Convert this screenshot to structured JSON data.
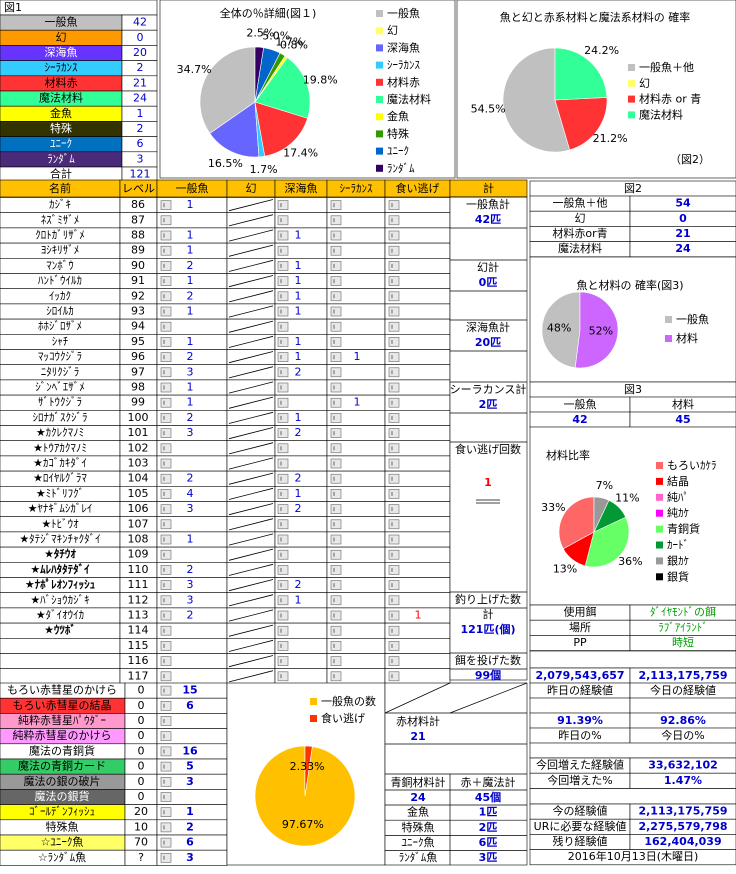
{
  "fig1_table": {
    "title": "図1",
    "rows": [
      {
        "name": "一般魚",
        "count": 42,
        "color": "#c0c0c0"
      },
      {
        "name": "幻",
        "count": 0,
        "color": "#ff9900"
      },
      {
        "name": "深海魚",
        "count": 20,
        "color": "#6633ff"
      },
      {
        "name": "ｼｰﾗｶﾝｽ",
        "count": 2,
        "color": "#33ccff"
      },
      {
        "name": "材料赤",
        "count": 21,
        "color": "#ff3333"
      },
      {
        "name": "魔法材料",
        "count": 24,
        "color": "#33ff99"
      },
      {
        "name": "金魚",
        "count": 1,
        "color": "#ffff00"
      },
      {
        "name": "特殊",
        "count": 2,
        "color": "#333300"
      },
      {
        "name": "ﾕﾆｰｸ",
        "count": 6,
        "color": "#0070c0"
      },
      {
        "name": "ﾗﾝﾀﾞﾑ",
        "count": 3,
        "color": "#4b2a7a"
      }
    ],
    "total_label": "合計",
    "total": 121
  },
  "pie1": {
    "type": "pie",
    "title": "全体の％詳細(図１)",
    "categories": [
      "一般魚",
      "幻",
      "深海魚",
      "ｼｰﾗｶﾝｽ",
      "材料赤",
      "魔法材料",
      "金魚",
      "特殊",
      "ﾕﾆｰｸ",
      "ﾗﾝﾀﾞﾑ"
    ],
    "values": [
      34.7,
      0,
      16.5,
      1.7,
      17.4,
      19.8,
      0.8,
      1.7,
      5.0,
      2.5
    ],
    "value_labels": [
      "34.7%",
      null,
      "16.5%",
      "1.7%",
      "17.4%",
      "19.8%",
      "0.8%",
      "1.7%",
      "5.0%",
      "2.5%"
    ],
    "colors": [
      "#c0c0c0",
      "#ffff66",
      "#6666ff",
      "#33ccff",
      "#ff3333",
      "#33ff99",
      "#ffff00",
      "#339900",
      "#0066cc",
      "#330066"
    ]
  },
  "pie2": {
    "type": "pie",
    "title": "魚と幻と赤系材料と魔法系材料の 確率",
    "caption": "（図2）",
    "categories": [
      "一般魚＋他",
      "幻",
      "材料赤 or 青",
      "魔法材料"
    ],
    "values": [
      54.5,
      0,
      21.2,
      24.2
    ],
    "value_labels": [
      "54.5%",
      null,
      "21.2%",
      "24.2%"
    ],
    "colors": [
      "#c0c0c0",
      "#ffff66",
      "#ff3333",
      "#33ff99"
    ]
  },
  "main_table": {
    "header": [
      "名前",
      "レベル",
      "一般魚",
      "幻",
      "深海魚",
      "ｼｰﾗｶﾝｽ",
      "食い逃げ",
      "計"
    ],
    "rows": [
      [
        "ｶｼﾞｷ",
        86,
        1,
        null,
        null,
        null
      ],
      [
        "ﾈｽﾞﾐｻﾞﾒ",
        87,
        null,
        null,
        null,
        null
      ],
      [
        "ｸﾛﾄｶﾞﾘｻﾞﾒ",
        88,
        1,
        1,
        null,
        null
      ],
      [
        "ﾖｼｷﾘｻﾞﾒ",
        89,
        1,
        null,
        null,
        null
      ],
      [
        "ﾏﾝﾎﾞｳ",
        90,
        2,
        1,
        null,
        null
      ],
      [
        "ﾊﾝﾄﾞｳｲﾙｶ",
        91,
        1,
        1,
        null,
        null
      ],
      [
        "ｲｯｶｸ",
        92,
        2,
        1,
        null,
        null
      ],
      [
        "ｼﾛｲﾙｶ",
        93,
        1,
        1,
        null,
        null
      ],
      [
        "ﾎﾎｼﾞﾛｻﾞﾒ",
        94,
        null,
        null,
        null,
        null
      ],
      [
        "ｼｬﾁ",
        95,
        1,
        1,
        null,
        null
      ],
      [
        "ﾏｯｺｳｸｼﾞﾗ",
        96,
        2,
        1,
        1,
        null
      ],
      [
        "ﾆﾀﾘｸｼﾞﾗ",
        97,
        3,
        2,
        null,
        null
      ],
      [
        "ｼﾞﾝﾍﾞｴｻﾞﾒ",
        98,
        1,
        null,
        null,
        null
      ],
      [
        "ｻﾞﾄｳｸｼﾞﾗ",
        99,
        1,
        null,
        1,
        null
      ],
      [
        "ｼﾛﾅｶﾞｽｸｼﾞﾗ",
        100,
        2,
        1,
        null,
        null
      ],
      [
        "★ｶｸﾚｸﾏﾉﾐ",
        101,
        3,
        2,
        null,
        null
      ],
      [
        "★ﾄｳｱｶｸﾏﾉﾐ",
        102,
        null,
        null,
        null,
        null
      ],
      [
        "★ｶｺﾞｶｷﾀﾞｲ",
        103,
        null,
        null,
        null,
        null
      ],
      [
        "★ﾛｲﾔﾙｸﾞﾗﾏ",
        104,
        2,
        2,
        null,
        null
      ],
      [
        "★ﾐﾄﾞﾘﾌｸﾞ",
        105,
        4,
        1,
        null,
        null
      ],
      [
        "★ﾔﾅｷﾞﾑｼｶﾞﾚｲ",
        106,
        3,
        2,
        null,
        null
      ],
      [
        "★ﾄﾋﾞｳｵ",
        107,
        null,
        null,
        null,
        null
      ],
      [
        "★ﾀﾃｼﾞﾏｷﾝﾁｬｸﾀﾞｲ",
        108,
        1,
        null,
        null,
        null
      ],
      [
        "★ﾀﾁｳｵ",
        109,
        null,
        null,
        null,
        null
      ],
      [
        "★ﾑﾚﾊﾀﾀﾃﾀﾞｲ",
        110,
        2,
        null,
        null,
        null
      ],
      [
        "★ﾅﾎﾟﾚｵﾝﾌｨｯｼｭ",
        111,
        3,
        2,
        null,
        null
      ],
      [
        "★ﾊﾞｼｮｳｶｼﾞｷ",
        112,
        3,
        1,
        null,
        null
      ],
      [
        "★ﾀﾞｲｵｳｲｶ",
        113,
        2,
        null,
        null,
        1
      ],
      [
        "★ｳﾂﾎﾞ",
        114,
        null,
        null,
        null,
        null
      ],
      [
        null,
        115,
        null,
        null,
        null,
        null
      ],
      [
        null,
        116,
        null,
        null,
        null,
        null
      ],
      [
        null,
        117,
        null,
        null,
        null,
        null
      ]
    ]
  },
  "tallies": [
    {
      "label": "一般魚計",
      "value": "42匹"
    },
    {
      "label": "幻計",
      "value": "0匹"
    },
    {
      "label": "深海魚計",
      "value": "20匹"
    },
    {
      "label": "シーラカンス計",
      "value": "2匹"
    },
    {
      "label": "食い逃げ回数",
      "value": 1
    }
  ],
  "caught": {
    "label": "釣り上げた数",
    "sub": "計",
    "value": "121匹(個)"
  },
  "bait_thrown": {
    "label": "餌を投げた数",
    "value": "99個"
  },
  "fig2_table": {
    "title": "図2",
    "rows": [
      [
        "一般魚＋他",
        54
      ],
      [
        "幻",
        0
      ],
      [
        "材料赤or青",
        21
      ],
      [
        "魔法材料",
        24
      ]
    ]
  },
  "pie3": {
    "type": "pie",
    "title": "魚と材料の 確率(図3)",
    "categories": [
      "一般魚",
      "材料"
    ],
    "values": [
      48,
      52
    ],
    "value_labels": [
      "48%",
      "52%"
    ],
    "colors": [
      "#c0c0c0",
      "#cc66ff"
    ]
  },
  "fig3_table": {
    "title": "図3",
    "headers": [
      "一般魚",
      "材料"
    ],
    "values": [
      42,
      45
    ]
  },
  "pie4": {
    "type": "pie",
    "title": "材料比率",
    "categories": [
      "もろいｶｹﾗ",
      "結晶",
      "純ﾊﾟ",
      "純ｶｹ",
      "青銅貨",
      "ｶｰﾄﾞ",
      "銀ｶｹ",
      "銀貨"
    ],
    "values": [
      33,
      13,
      0,
      0,
      36,
      11,
      7,
      0
    ],
    "value_labels": [
      "33%",
      "13%",
      null,
      null,
      "36%",
      "11%",
      "7%",
      null
    ],
    "colors": [
      "#ff6666",
      "#ff0000",
      "#ff66cc",
      "#ff00ff",
      "#66ff66",
      "#009933",
      "#999999",
      "#000000"
    ]
  },
  "settings": [
    [
      "使用餌",
      "ﾀﾞｲﾔﾓﾝﾄﾞの餌"
    ],
    [
      "場所",
      "ﾗﾌﾞｱｲﾗﾝﾄﾞ"
    ],
    [
      "PP",
      "時短"
    ]
  ],
  "experience": {
    "values": [
      "2,079,543,657",
      "2,113,175,759"
    ],
    "labels": [
      "昨日の経験値",
      "今日の経験値"
    ],
    "pcts": [
      "91.39%",
      "92.86%"
    ],
    "pct_labels": [
      "昨日の%",
      "今日の%"
    ]
  },
  "gain": [
    [
      "今回増えた経験値",
      "33,632,102"
    ],
    [
      "今回増えた%",
      "1.47%"
    ]
  ],
  "remaining": [
    [
      "今の経験値",
      "2,113,175,759"
    ],
    [
      "URに必要な経験値",
      "2,275,579,798"
    ],
    [
      "残り経験値",
      "162,404,039"
    ]
  ],
  "date": "2016年10月13日(木曜日)",
  "materials": [
    {
      "name": "もろい赤彗星のかけら",
      "level": 0,
      "count": 15,
      "color": "#ffffff"
    },
    {
      "name": "もろい赤彗星の結晶",
      "level": 0,
      "count": 6,
      "color": "#ff3333"
    },
    {
      "name": "純粋赤彗星ﾊﾟｳﾀﾞｰ",
      "level": 0,
      "count": null,
      "color": "#ff99cc"
    },
    {
      "name": "純粋赤彗星のかけら",
      "level": 0,
      "count": null,
      "color": "#ff99ff"
    },
    {
      "name": "魔法の青銅貨",
      "level": 0,
      "count": 16,
      "color": "#ffffff"
    },
    {
      "name": "魔法の青銅カード",
      "level": 0,
      "count": 5,
      "color": "#33cc66"
    },
    {
      "name": "魔法の銀の破片",
      "level": 0,
      "count": 3,
      "color": "#999999"
    },
    {
      "name": "魔法の銀貨",
      "level": 0,
      "count": null,
      "color": "#666666"
    },
    {
      "name": "ｺﾞｰﾙﾃﾞﾝﾌｨｯｼｭ",
      "level": 20,
      "count": 1,
      "color": "#ffff00"
    },
    {
      "name": "特殊魚",
      "level": 10,
      "count": 2,
      "color": "#ffffff"
    },
    {
      "name": "☆ﾕﾆｰｸ魚",
      "level": 70,
      "count": 6,
      "color": "#ffff66"
    },
    {
      "name": "☆ﾗﾝﾀﾞﾑ魚",
      "level": "?",
      "count": 3,
      "color": "#ffffff"
    }
  ],
  "pie5": {
    "type": "pie",
    "categories": [
      "一般魚の数",
      "食い逃げ"
    ],
    "values": [
      97.67,
      2.33
    ],
    "value_labels": [
      "97.67%",
      "2.33%"
    ],
    "colors": [
      "#ffc000",
      "#ff3300"
    ]
  },
  "material_totals": {
    "red_label": "赤材料計",
    "red": 21,
    "bronze_label": "青銅材料計",
    "bronze": 24,
    "sum_label": "赤＋魔法計",
    "sum": "45個"
  },
  "special_fish": [
    [
      "金魚",
      "1匹"
    ],
    [
      "特殊魚",
      "2匹"
    ],
    [
      "ﾕﾆｰｸ魚",
      "6匹"
    ],
    [
      "ﾗﾝﾀﾞﾑ魚",
      "3匹"
    ]
  ]
}
